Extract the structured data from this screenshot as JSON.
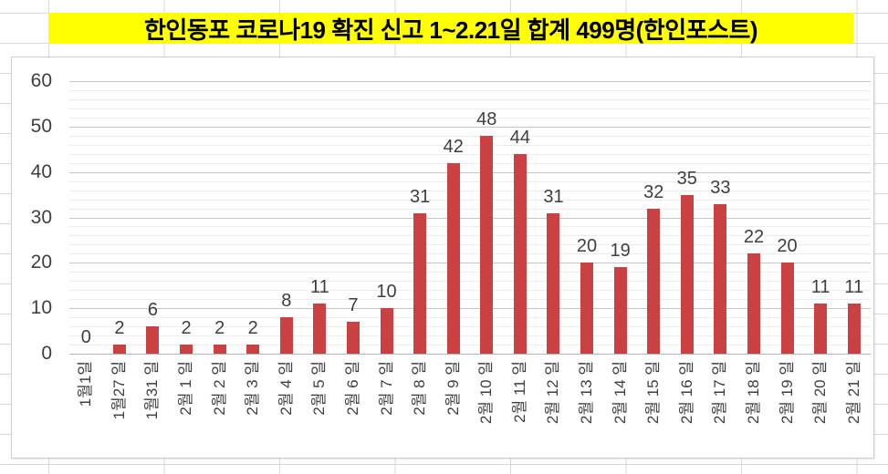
{
  "title": {
    "text": "한인동포 코로나19 확진 신고 1~2.21일 합계 499명(한인포스트)"
  },
  "colors": {
    "banner_bg": "#FFFF00",
    "banner_text": "#000000",
    "bar": "#C94143",
    "grid_major": "#C6C6C6",
    "grid_minor": "#ECECEC",
    "axis_line": "#B5B5B5",
    "text": "#3F3F3F",
    "sheet_grid": "#D9D9D9",
    "chart_border": "#D0D0D0",
    "chart_bg": "#FFFFFF"
  },
  "chart_data": {
    "type": "bar",
    "title": "한인동포 코로나19 확진 신고 1~2.21일 합계 499명(한인포스트)",
    "categories": [
      "1월1일",
      "1월27 일",
      "1월31 일",
      "2월 1 일",
      "2월 2 일",
      "2월 3 일",
      "2월 4 일",
      "2월 5 일",
      "2월 6 일",
      "2월 7 일",
      "2월 8 일",
      "2월 9 일",
      "2월 10 일",
      "2월 11 일",
      "2월 12 일",
      "2월 13 일",
      "2월 14 일",
      "2월 15 일",
      "2월 16 일",
      "2월 17 일",
      "2월 18 일",
      "2월 19 일",
      "2월 20 일",
      "2월 21 일"
    ],
    "values": [
      0,
      2,
      6,
      2,
      2,
      2,
      8,
      11,
      7,
      10,
      31,
      42,
      48,
      44,
      31,
      20,
      19,
      32,
      35,
      33,
      22,
      20,
      11,
      11
    ],
    "xlabel": "",
    "ylabel": "",
    "ylim": [
      0,
      60
    ],
    "yticks": [
      0,
      10,
      20,
      30,
      40,
      50,
      60
    ],
    "minor_grid_step": 2,
    "grid": "on",
    "data_labels": "outside-end",
    "legend": "none",
    "bar_color_name": "red"
  }
}
